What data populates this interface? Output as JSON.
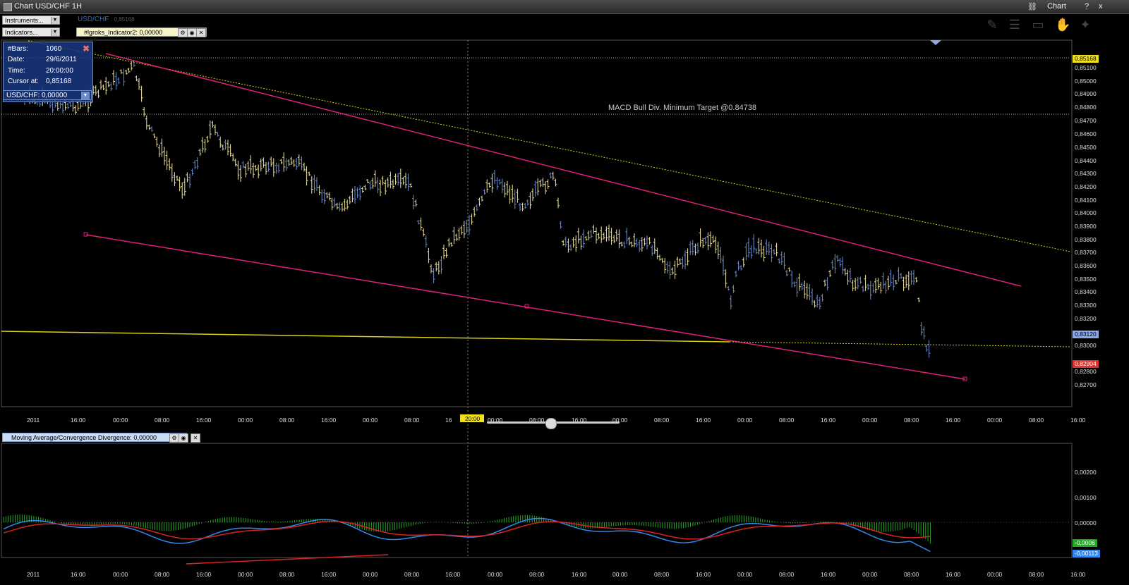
{
  "window": {
    "title": "Chart USD/CHF 1H",
    "right_label": "Chart",
    "help": "?",
    "close": "x",
    "link_icon": "link-icon"
  },
  "toolbar": {
    "instruments_label": "Instruments...",
    "indicators_label": "Indicators...",
    "symbol": "USD/CHF",
    "symbol_price": ": 0,85168",
    "indicator_tag": "#lgroks_Indicator2: 0,00000",
    "tools": [
      "pencil-icon",
      "list-icon",
      "monitor-icon",
      "hand-icon",
      "handshake-icon"
    ]
  },
  "infobox": {
    "rows": [
      {
        "label": "#Bars:",
        "value": "1060"
      },
      {
        "label": "Date:",
        "value": "29/6/2011"
      },
      {
        "label": "Time:",
        "value": "20:00:00"
      },
      {
        "label": "Cursor at:",
        "value": "0,85168"
      }
    ],
    "selector": "USD/CHF: 0,00000"
  },
  "annotation": "MACD Bull Div. Minimum Target @0.84738",
  "price_axis": {
    "labels": [
      "0,85100",
      "0,85000",
      "0,84900",
      "0,84800",
      "0,84700",
      "0,84600",
      "0,84500",
      "0,84400",
      "0,84300",
      "0,84200",
      "0,84100",
      "0,84000",
      "0,83900",
      "0,83800",
      "0,83700",
      "0,83600",
      "0,83500",
      "0,83400",
      "0,83300",
      "0,83200",
      "0,83000",
      "0,82800",
      "0,82700"
    ],
    "tags": [
      {
        "text": "0,85168",
        "color": "#f0e020"
      },
      {
        "text": "0,83120",
        "color": "#8aa8e8"
      },
      {
        "text": "0,82904",
        "color": "#e03030"
      }
    ]
  },
  "time_axis": [
    "2011",
    "16:00",
    "00:00",
    "08:00",
    "16:00",
    "00:00",
    "08:00",
    "16:00",
    "00:00",
    "08:00",
    "16",
    "00:00",
    "08:00",
    "16:00",
    "00:00",
    "08:00",
    "16:00",
    "00:00",
    "08:00",
    "16:00",
    "00:00",
    "08:00",
    "16:00",
    "00:00",
    "08:00",
    "16:00"
  ],
  "cursor_time": "20:00",
  "macd": {
    "label": "Moving Average/Convergence Divergence: 0,00000",
    "axis": [
      "0,00200",
      "0,00100",
      "0,00000"
    ],
    "tags": [
      {
        "text": "-0,0006",
        "color": "#22aa22"
      },
      {
        "text": "-0,00113",
        "color": "#3388ee"
      }
    ],
    "time_axis": [
      "2011",
      "16:00",
      "00:00",
      "08:00",
      "16:00",
      "00:00",
      "08:00",
      "16:00",
      "00:00",
      "08:00",
      "16:00",
      "00:00",
      "08:00",
      "16:00",
      "00:00",
      "08:00",
      "16:00",
      "00:00",
      "08:00",
      "16:00",
      "00:00",
      "08:00",
      "16:00",
      "00:00",
      "08:00",
      "16:00"
    ]
  },
  "colors": {
    "bull": "#f0e6a0",
    "bear": "#6f8fd0",
    "trend": "#e0207a",
    "support": "#d8d010",
    "macd_line": "#3388ee",
    "signal": "#dd2222",
    "hist": "#22aa22"
  }
}
